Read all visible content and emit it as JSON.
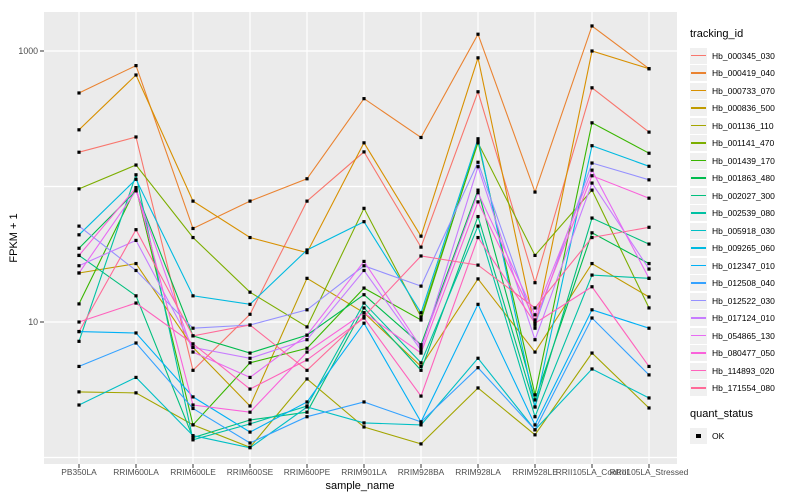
{
  "axes": {
    "x_title": "sample_name",
    "y_title": "FPKM + 1"
  },
  "legend": {
    "tracking_title": "tracking_id",
    "quant_title": "quant_status",
    "quant_items": [
      {
        "label": "OK",
        "marker": "black-square"
      }
    ]
  },
  "chart_data": {
    "type": "line",
    "title": "",
    "xlabel": "sample_name",
    "ylabel": "FPKM + 1",
    "y_scale": "log10",
    "ylim": [
      0.9,
      1950
    ],
    "grid": "on",
    "legend_position": "right",
    "panel_background": "#EBEBEB",
    "gridline_color": "#FFFFFF",
    "axis_text_color": "#4D4D4D",
    "tick_mark_color": "#333333",
    "point_color": "#000000",
    "point_shape": "square",
    "y_axis_ticks": [
      {
        "value": 1000,
        "label": "1000"
      },
      {
        "value": 10,
        "label": "10"
      }
    ],
    "y_gridlines": [
      1,
      10,
      100,
      1000
    ],
    "categories": [
      "PB350LA",
      "RRIM600LA",
      "RRIM600LE",
      "RRIM600SE",
      "RRIM600PE",
      "RRIM901LA",
      "RRIM928BA",
      "RRIM928LA",
      "RRIM928LE",
      "RRII105LA_Control",
      "RRII105LA_Stressed"
    ],
    "series": [
      {
        "name": "Hb_000345_030",
        "color": "#F8766D",
        "values": [
          179,
          232,
          4.4,
          11.4,
          78,
          180,
          35.7,
          500,
          19.5,
          535,
          252
        ]
      },
      {
        "name": "Hb_000419_040",
        "color": "#EA8331",
        "values": [
          490,
          780,
          49,
          78,
          114,
          445,
          230,
          1330,
          91,
          1530,
          740
        ]
      },
      {
        "name": "Hb_000733_070",
        "color": "#D89000",
        "values": [
          262,
          665,
          78,
          42,
          32.5,
          210,
          43,
          890,
          9,
          1000,
          740
        ]
      },
      {
        "name": "Hb_000836_500",
        "color": "#C09B00",
        "values": [
          23,
          27,
          6.5,
          2.4,
          21,
          11.7,
          4.7,
          20.8,
          6,
          27,
          15.3
        ]
      },
      {
        "name": "Hb_001136_110",
        "color": "#A3A500",
        "values": [
          3.05,
          3,
          1.74,
          1.19,
          3.8,
          1.68,
          1.26,
          3.26,
          1.47,
          5.9,
          2.32
        ]
      },
      {
        "name": "Hb_001141_470",
        "color": "#7CAE00",
        "values": [
          96,
          144,
          42,
          16.6,
          9.2,
          69,
          10.9,
          210,
          31,
          94,
          12.7
        ]
      },
      {
        "name": "Hb_001439_170",
        "color": "#39B600",
        "values": [
          13.6,
          98,
          1.74,
          5,
          6.4,
          17.8,
          10.35,
          215,
          2.9,
          295,
          176
        ]
      },
      {
        "name": "Hb_001863_480",
        "color": "#00BB4E",
        "values": [
          35,
          93,
          7.9,
          5.9,
          8,
          15.9,
          6.8,
          94,
          2.66,
          45.5,
          27
        ]
      },
      {
        "name": "Hb_002027_300",
        "color": "#00BF7D",
        "values": [
          31,
          15.6,
          1.4,
          1.89,
          2.16,
          12.7,
          4.4,
          60,
          2.36,
          58.5,
          37.6
        ]
      },
      {
        "name": "Hb_002539_080",
        "color": "#00C1A3",
        "values": [
          7.2,
          122,
          1.35,
          1.77,
          2.4,
          13.8,
          5,
          51,
          2,
          22.2,
          21
        ]
      },
      {
        "name": "Hb_005918_030",
        "color": "#00BFC4",
        "values": [
          2.44,
          3.9,
          1.45,
          1.18,
          2.36,
          1.8,
          1.74,
          5.4,
          1.6,
          4.5,
          2.75
        ]
      },
      {
        "name": "Hb_009265_060",
        "color": "#00BAE0",
        "values": [
          44,
          113,
          15.6,
          13.5,
          34,
          55,
          11.7,
          225,
          2.36,
          200,
          141
        ]
      },
      {
        "name": "Hb_012347_010",
        "color": "#00B0F6",
        "values": [
          8.5,
          8.3,
          2.8,
          1.54,
          2.57,
          9.8,
          1.83,
          13.5,
          1.74,
          12.3,
          9
        ]
      },
      {
        "name": "Hb_012508_040",
        "color": "#35A2FF",
        "values": [
          4.7,
          7,
          2.3,
          1.28,
          2,
          2.57,
          1.83,
          4.6,
          1.6,
          10.7,
          4.07
        ]
      },
      {
        "name": "Hb_012522_030",
        "color": "#9590FF",
        "values": [
          51,
          24,
          9,
          9.5,
          12.3,
          26,
          18.4,
          151,
          9.5,
          149,
          112
        ]
      },
      {
        "name": "Hb_017124_010",
        "color": "#C77CFF",
        "values": [
          26,
          40,
          6.5,
          5.4,
          7.4,
          24,
          6.2,
          140,
          7.4,
          106,
          24.6
        ]
      },
      {
        "name": "Hb_054865_130",
        "color": "#E76BF3",
        "values": [
          23,
          93,
          6,
          3.9,
          8,
          28,
          6.5,
          90,
          11.3,
          132,
          21
        ]
      },
      {
        "name": "Hb_080477_050",
        "color": "#FA62DB",
        "values": [
          31,
          98,
          2.44,
          2.16,
          6,
          11.7,
          5.9,
          77,
          10.35,
          120,
          82
        ]
      },
      {
        "name": "Hb_114893_020",
        "color": "#FF62BC",
        "values": [
          10,
          13.8,
          6.9,
          3.2,
          5.25,
          10.7,
          2.84,
          42,
          9.8,
          18.2,
          4.7
        ]
      },
      {
        "name": "Hb_171554_080",
        "color": "#FF6A98",
        "values": [
          8.5,
          48,
          7.9,
          9.5,
          4.4,
          11,
          30.7,
          26.3,
          12.7,
          42,
          50
        ]
      }
    ]
  }
}
